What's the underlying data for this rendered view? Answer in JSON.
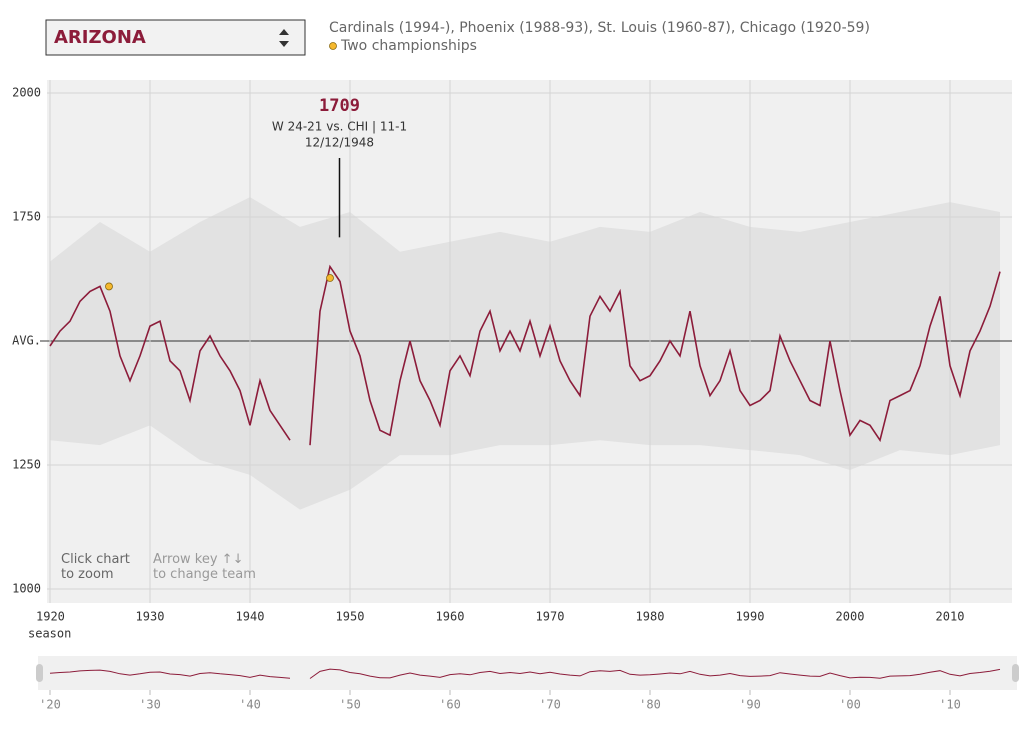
{
  "chart_data": {
    "type": "line",
    "team_name": "ARIZONA",
    "subtitle": "Cardinals (1994-), Phoenix (1988-93), St. Louis (1960-87), Chicago (1920-59)",
    "championships": {
      "name": "Two championships",
      "color": "#f5b82e",
      "x": [
        1925.9,
        1948.0
      ],
      "values": [
        1610,
        1627
      ]
    },
    "xlim": [
      1919.7,
      2016.2
    ],
    "ylim": [
      1000,
      2000
    ],
    "xticks": [
      1920,
      1930,
      1940,
      1950,
      1960,
      1970,
      1980,
      1990,
      2000,
      2010
    ],
    "yticks": [
      1000,
      1250,
      {
        "value": 1500,
        "label": "AVG."
      },
      1750,
      2000
    ],
    "x_label": "season",
    "grid": true,
    "team": {
      "color": "#8c1c3a",
      "x": [
        1920,
        1921,
        1922,
        1923,
        1924,
        1925,
        1926,
        1927,
        1928,
        1929,
        1930,
        1931,
        1932,
        1933,
        1934,
        1935,
        1936,
        1937,
        1938,
        1939,
        1940,
        1941,
        1942,
        1943,
        1944,
        1945,
        1946,
        1947,
        1948,
        1949,
        1950,
        1951,
        1952,
        1953,
        1954,
        1955,
        1956,
        1957,
        1958,
        1959,
        1960,
        1961,
        1962,
        1963,
        1964,
        1965,
        1966,
        1967,
        1968,
        1969,
        1970,
        1971,
        1972,
        1973,
        1974,
        1975,
        1976,
        1977,
        1978,
        1979,
        1980,
        1981,
        1982,
        1983,
        1984,
        1985,
        1986,
        1987,
        1988,
        1989,
        1990,
        1991,
        1992,
        1993,
        1994,
        1995,
        1996,
        1997,
        1998,
        1999,
        2000,
        2001,
        2002,
        2003,
        2004,
        2005,
        2006,
        2007,
        2008,
        2009,
        2010,
        2011,
        2012,
        2013,
        2014,
        2015
      ],
      "values": [
        1490,
        1520,
        1540,
        1580,
        1600,
        1610,
        1560,
        1470,
        1420,
        1470,
        1530,
        1540,
        1460,
        1440,
        1380,
        1480,
        1510,
        1470,
        1440,
        1400,
        1330,
        1420,
        1360,
        1330,
        1300,
        null,
        1290,
        1560,
        1650,
        1620,
        1520,
        1470,
        1380,
        1320,
        1310,
        1420,
        1500,
        1420,
        1380,
        1330,
        1440,
        1470,
        1430,
        1520,
        1560,
        1480,
        1520,
        1480,
        1540,
        1470,
        1530,
        1460,
        1420,
        1390,
        1550,
        1590,
        1560,
        1600,
        1450,
        1420,
        1430,
        1460,
        1500,
        1470,
        1560,
        1450,
        1390,
        1420,
        1480,
        1400,
        1370,
        1380,
        1400,
        1510,
        1460,
        1420,
        1380,
        1370,
        1500,
        1400,
        1310,
        1340,
        1330,
        1300,
        1380,
        1390,
        1400,
        1450,
        1530,
        1590,
        1450,
        1390,
        1480,
        1520,
        1570,
        1640
      ]
    },
    "band": {
      "color": "#e2e2e2",
      "x": [
        1920,
        1925,
        1930,
        1935,
        1940,
        1945,
        1950,
        1955,
        1960,
        1965,
        1970,
        1975,
        1980,
        1985,
        1990,
        1995,
        2000,
        2005,
        2010,
        2015
      ],
      "upper": [
        1660,
        1740,
        1680,
        1740,
        1790,
        1730,
        1760,
        1680,
        1700,
        1720,
        1700,
        1730,
        1720,
        1760,
        1730,
        1720,
        1740,
        1760,
        1780,
        1760
      ],
      "lower": [
        1300,
        1290,
        1330,
        1260,
        1230,
        1160,
        1200,
        1270,
        1270,
        1290,
        1290,
        1300,
        1290,
        1290,
        1280,
        1270,
        1240,
        1280,
        1270,
        1290
      ]
    },
    "annotation": {
      "x": 1948.95,
      "value": 1709,
      "line1": "W 24-21 vs. CHI | 11-1",
      "line2": "12/12/1948"
    },
    "hints": [
      "Click chart\nto zoom",
      "Arrow key ↑↓\nto change team"
    ],
    "mini_xticks": [
      {
        "value": 1920,
        "label": "'20"
      },
      {
        "value": 1930,
        "label": "'30"
      },
      {
        "value": 1940,
        "label": "'40"
      },
      {
        "value": 1950,
        "label": "'50"
      },
      {
        "value": 1960,
        "label": "'60"
      },
      {
        "value": 1970,
        "label": "'70"
      },
      {
        "value": 1980,
        "label": "'80"
      },
      {
        "value": 1990,
        "label": "'90"
      },
      {
        "value": 2000,
        "label": "'00"
      },
      {
        "value": 2010,
        "label": "'10"
      }
    ]
  }
}
